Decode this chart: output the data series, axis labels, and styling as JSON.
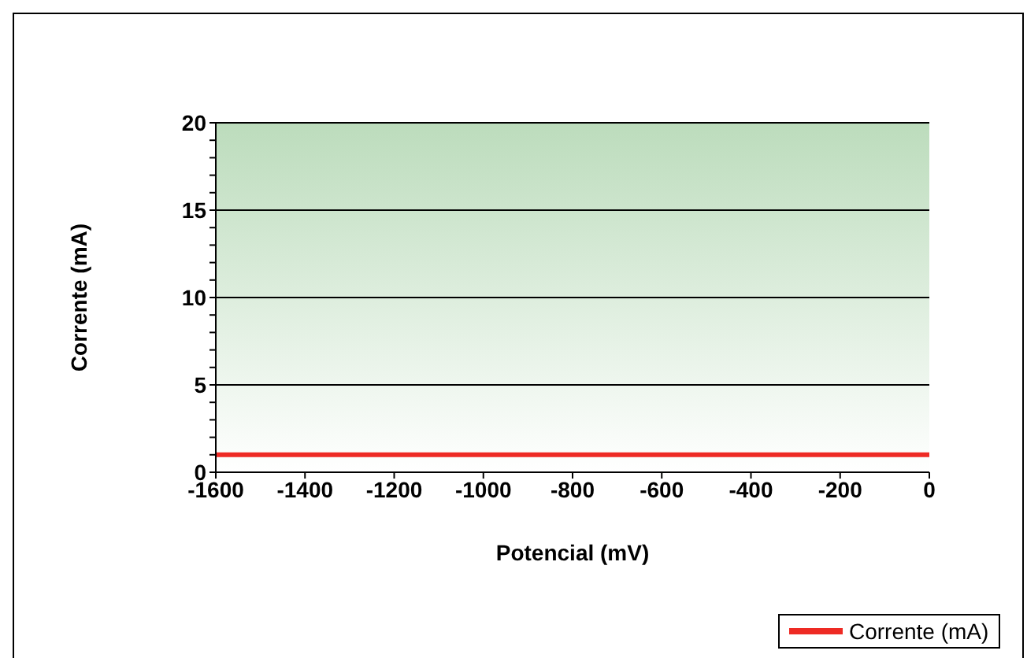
{
  "chart_data": {
    "type": "line",
    "xlabel": "Potencial (mV)",
    "ylabel": "Corrente (mA)",
    "x": [
      -1600,
      0
    ],
    "series": [
      {
        "name": "Corrente (mA)",
        "color": "#ee2a24",
        "values": [
          1,
          1
        ]
      }
    ],
    "xlim": [
      -1600,
      0
    ],
    "xticks": [
      -1600,
      -1400,
      -1200,
      -1000,
      -800,
      -600,
      -400,
      -200,
      0
    ],
    "ylim": [
      0,
      20
    ],
    "yticks": [
      0,
      {
        "value": 1,
        "label": null
      },
      {
        "value": 2,
        "label": null
      },
      {
        "value": 3,
        "label": null
      },
      {
        "value": 4,
        "label": null
      },
      5,
      {
        "value": 6,
        "label": null
      },
      {
        "value": 7,
        "label": null
      },
      {
        "value": 8,
        "label": null
      },
      {
        "value": 9,
        "label": null
      },
      10,
      {
        "value": 11,
        "label": null
      },
      {
        "value": 12,
        "label": null
      },
      {
        "value": 13,
        "label": null
      },
      {
        "value": 14,
        "label": null
      },
      15,
      {
        "value": 16,
        "label": null
      },
      {
        "value": 17,
        "label": null
      },
      {
        "value": 18,
        "label": null
      },
      {
        "value": 19,
        "label": null
      },
      20
    ],
    "grid": "y",
    "legend": "bottom right",
    "marker": "none",
    "line_style": "solid"
  }
}
